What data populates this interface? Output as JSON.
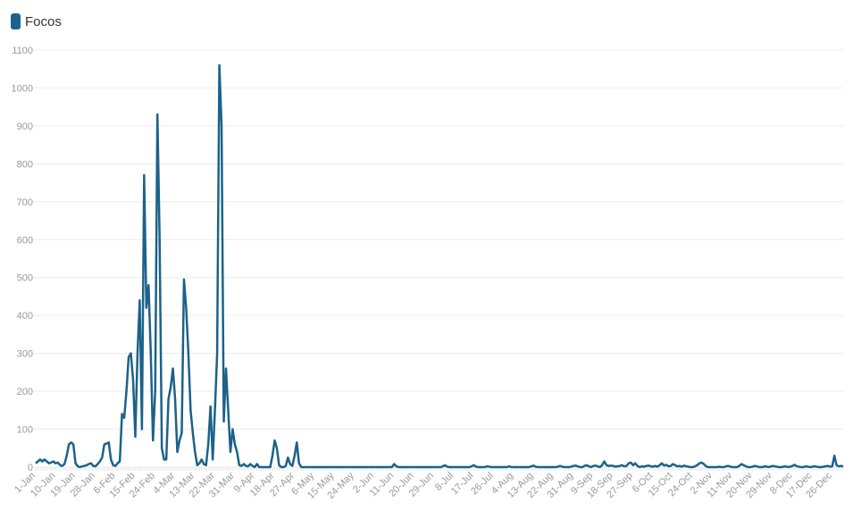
{
  "chart_data": {
    "type": "line",
    "categories": [
      "1-Jan",
      null,
      null,
      null,
      null,
      null,
      null,
      null,
      null,
      "10-Jan",
      null,
      null,
      null,
      null,
      null,
      null,
      null,
      null,
      "19-Jan",
      null,
      null,
      null,
      null,
      null,
      null,
      null,
      null,
      "28-Jan",
      null,
      null,
      null,
      null,
      null,
      null,
      null,
      null,
      "6-Feb",
      null,
      null,
      null,
      null,
      null,
      null,
      null,
      null,
      "15-Feb",
      null,
      null,
      null,
      null,
      null,
      null,
      null,
      null,
      "24-Feb",
      null,
      null,
      null,
      null,
      null,
      null,
      null,
      null,
      "4-Mar",
      null,
      null,
      null,
      null,
      null,
      null,
      null,
      null,
      "13-Mar",
      null,
      null,
      null,
      null,
      null,
      null,
      null,
      null,
      "22-Mar",
      null,
      null,
      null,
      null,
      null,
      null,
      null,
      null,
      "31-Mar",
      null,
      null,
      null,
      null,
      null,
      null,
      null,
      null,
      "9-Apr",
      null,
      null,
      null,
      null,
      null,
      null,
      null,
      null,
      "18-Apr",
      null,
      null,
      null,
      null,
      null,
      null,
      null,
      null,
      "27-Apr",
      null,
      null,
      null,
      null,
      null,
      null,
      null,
      null,
      "6-May",
      null,
      null,
      null,
      null,
      null,
      null,
      null,
      null,
      "15-May",
      null,
      null,
      null,
      null,
      null,
      null,
      null,
      null,
      "24-May",
      null,
      null,
      null,
      null,
      null,
      null,
      null,
      null,
      "2-Jun",
      null,
      null,
      null,
      null,
      null,
      null,
      null,
      null,
      "11-Jun",
      null,
      null,
      null,
      null,
      null,
      null,
      null,
      null,
      "20-Jun",
      null,
      null,
      null,
      null,
      null,
      null,
      null,
      null,
      "29-Jun",
      null,
      null,
      null,
      null,
      null,
      null,
      null,
      null,
      "8-Jul",
      null,
      null,
      null,
      null,
      null,
      null,
      null,
      null,
      "17-Jul",
      null,
      null,
      null,
      null,
      null,
      null,
      null,
      null,
      "26-Jul",
      null,
      null,
      null,
      null,
      null,
      null,
      null,
      null,
      "4-Aug",
      null,
      null,
      null,
      null,
      null,
      null,
      null,
      null,
      "13-Aug",
      null,
      null,
      null,
      null,
      null,
      null,
      null,
      null,
      "22-Aug",
      null,
      null,
      null,
      null,
      null,
      null,
      null,
      null,
      "31-Aug",
      null,
      null,
      null,
      null,
      null,
      null,
      null,
      null,
      "9-Sep",
      null,
      null,
      null,
      null,
      null,
      null,
      null,
      null,
      "18-Sep",
      null,
      null,
      null,
      null,
      null,
      null,
      null,
      null,
      "27-Sep",
      null,
      null,
      null,
      null,
      null,
      null,
      null,
      null,
      "6-Oct",
      null,
      null,
      null,
      null,
      null,
      null,
      null,
      null,
      "15-Oct",
      null,
      null,
      null,
      null,
      null,
      null,
      null,
      null,
      "24-Oct",
      null,
      null,
      null,
      null,
      null,
      null,
      null,
      null,
      "2-Nov",
      null,
      null,
      null,
      null,
      null,
      null,
      null,
      null,
      "11-Nov",
      null,
      null,
      null,
      null,
      null,
      null,
      null,
      null,
      "20-Nov",
      null,
      null,
      null,
      null,
      null,
      null,
      null,
      null,
      "29-Nov",
      null,
      null,
      null,
      null,
      null,
      null,
      null,
      null,
      "8-Dec",
      null,
      null,
      null,
      null,
      null,
      null,
      null,
      null,
      "17-Dec",
      null,
      null,
      null,
      null,
      null,
      null,
      null,
      null,
      "26-Dec",
      null,
      null,
      null,
      null,
      null
    ],
    "series": [
      {
        "name": "Focos",
        "color": "#1c6289",
        "values": [
          10,
          15,
          20,
          15,
          20,
          15,
          10,
          12,
          15,
          10,
          12,
          5,
          3,
          8,
          30,
          60,
          65,
          60,
          10,
          2,
          0,
          2,
          3,
          5,
          8,
          10,
          3,
          2,
          8,
          15,
          25,
          60,
          62,
          65,
          20,
          5,
          3,
          10,
          15,
          140,
          130,
          200,
          290,
          300,
          230,
          80,
          300,
          440,
          100,
          770,
          420,
          480,
          300,
          70,
          200,
          930,
          600,
          50,
          20,
          20,
          180,
          210,
          260,
          180,
          40,
          70,
          90,
          495,
          420,
          300,
          150,
          90,
          40,
          5,
          10,
          20,
          8,
          5,
          60,
          160,
          20,
          150,
          300,
          1060,
          900,
          120,
          260,
          150,
          40,
          100,
          60,
          40,
          5,
          3,
          8,
          3,
          2,
          8,
          3,
          0,
          8,
          0,
          0,
          0,
          0,
          0,
          0,
          30,
          70,
          50,
          5,
          0,
          0,
          3,
          25,
          8,
          3,
          30,
          65,
          10,
          0,
          0,
          0,
          0,
          0,
          0,
          0,
          0,
          0,
          0,
          0,
          0,
          0,
          0,
          0,
          0,
          0,
          0,
          0,
          0,
          0,
          0,
          0,
          0,
          0,
          0,
          0,
          0,
          0,
          0,
          0,
          0,
          0,
          0,
          0,
          0,
          0,
          0,
          0,
          0,
          0,
          0,
          8,
          2,
          0,
          0,
          0,
          0,
          0,
          0,
          0,
          0,
          0,
          0,
          0,
          0,
          0,
          0,
          0,
          0,
          0,
          0,
          0,
          0,
          2,
          5,
          1,
          0,
          0,
          0,
          0,
          0,
          0,
          0,
          0,
          0,
          0,
          2,
          5,
          1,
          0,
          0,
          0,
          0,
          2,
          1,
          0,
          0,
          0,
          0,
          0,
          0,
          0,
          0,
          2,
          0,
          0,
          0,
          0,
          0,
          0,
          0,
          0,
          0,
          2,
          4,
          1,
          0,
          0,
          0,
          0,
          0,
          0,
          0,
          0,
          0,
          1,
          3,
          1,
          0,
          0,
          0,
          1,
          3,
          4,
          2,
          0,
          0,
          3,
          5,
          2,
          0,
          3,
          4,
          2,
          0,
          5,
          15,
          5,
          3,
          4,
          3,
          1,
          2,
          3,
          5,
          2,
          3,
          10,
          12,
          5,
          10,
          3,
          0,
          2,
          1,
          3,
          4,
          2,
          1,
          3,
          1,
          5,
          10,
          4,
          6,
          2,
          3,
          8,
          5,
          2,
          3,
          1,
          4,
          2,
          1,
          0,
          0,
          2,
          5,
          10,
          12,
          8,
          2,
          0,
          0,
          0,
          0,
          0,
          1,
          0,
          0,
          2,
          3,
          1,
          0,
          0,
          0,
          3,
          8,
          5,
          2,
          0,
          0,
          1,
          3,
          2,
          0,
          0,
          1,
          2,
          0,
          1,
          3,
          2,
          1,
          0,
          0,
          1,
          2,
          0,
          1,
          3,
          6,
          2,
          1,
          0,
          0,
          2,
          1,
          0,
          1,
          2,
          1,
          0,
          0,
          1,
          2,
          3,
          1,
          2,
          30,
          5,
          2,
          3,
          2
        ]
      }
    ],
    "ylim": [
      0,
      1100
    ],
    "yticks": [
      0,
      100,
      200,
      300,
      400,
      500,
      600,
      700,
      800,
      900,
      1000,
      1100
    ],
    "grid": true
  }
}
